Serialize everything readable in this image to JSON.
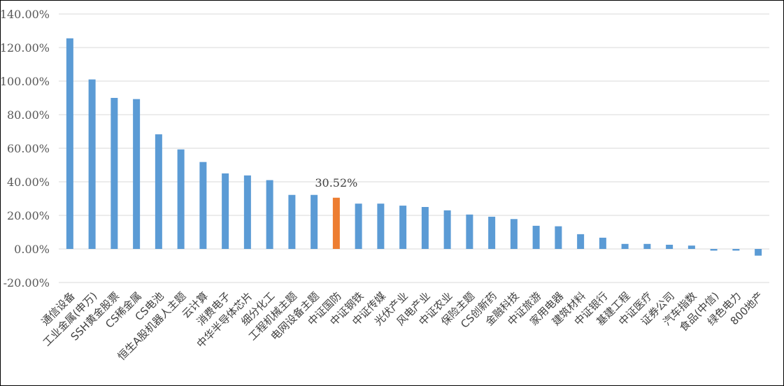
{
  "chart_data": {
    "type": "bar",
    "title": "",
    "xlabel": "",
    "ylabel": "",
    "ylim": [
      -20,
      140
    ],
    "yticks": [
      -20,
      0,
      20,
      40,
      60,
      80,
      100,
      120,
      140
    ],
    "ytick_labels": [
      "-20.00%",
      "0.00%",
      "20.00%",
      "40.00%",
      "60.00%",
      "80.00%",
      "100.00%",
      "120.00%",
      "140.00%"
    ],
    "grid": true,
    "legend": "none",
    "categories": [
      "通信设备",
      "工业金属(申万)",
      "SSH黄金股票",
      "CS稀金属",
      "CS电池",
      "恒生A股机器人主题",
      "云计算",
      "消费电子",
      "中华半导体芯片",
      "细分化工",
      "工程机械主题",
      "电网设备主题",
      "中证国防",
      "中证钢铁",
      "中证传媒",
      "光伏产业",
      "风电产业",
      "中证农业",
      "保险主题",
      "CS创新药",
      "金融科技",
      "中证旅游",
      "家用电器",
      "建筑材料",
      "中证银行",
      "基建工程",
      "中证医疗",
      "证券公司",
      "汽车指数",
      "食品(中信)",
      "绿色电力",
      "800地产"
    ],
    "values": [
      125.5,
      101,
      90,
      89.3,
      68.3,
      59.3,
      51.8,
      45,
      43.8,
      41,
      32.2,
      32.2,
      30.52,
      27,
      27,
      25.8,
      25,
      23,
      20.5,
      19.2,
      17.8,
      13.8,
      13.5,
      8.8,
      6.7,
      3,
      3,
      2.5,
      2,
      -1,
      -1,
      -4
    ],
    "highlight_index": 12,
    "highlight_label": "30.52%",
    "colors": {
      "bar": "#5b9bd5",
      "highlight": "#ed7d31"
    }
  }
}
